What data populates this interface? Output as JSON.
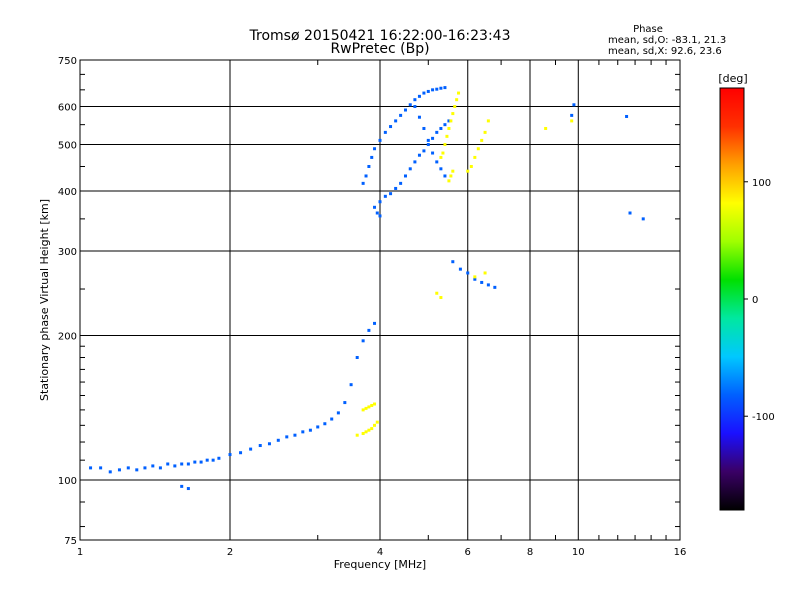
{
  "chart_data": {
    "type": "scatter",
    "title": "Tromsø 20150421 16:22:00-16:23:43",
    "subtitle": "RwPretec (Bp)",
    "xlabel": "Frequency [MHz]",
    "ylabel": "Stationary phase Virtual Height [km]",
    "x_scale": "log",
    "y_scale": "log",
    "xlim": [
      1,
      16
    ],
    "ylim": [
      75,
      750
    ],
    "x_ticks": [
      1,
      2,
      4,
      6,
      8,
      10,
      16
    ],
    "y_ticks": [
      75,
      100,
      200,
      300,
      400,
      500,
      600,
      750
    ],
    "grid": true,
    "phase_info": {
      "label": "Phase",
      "line_o": "mean, sd,O: -83.1, 21.3",
      "line_x": "mean, sd,X:  92.6, 23.6"
    },
    "colorbar": {
      "label": "[deg]",
      "range": [
        -180,
        180
      ],
      "ticks": [
        100,
        0,
        -100
      ],
      "colors": [
        "#000000",
        "#3a0066",
        "#1a10ff",
        "#0060ff",
        "#00c8ff",
        "#00e8a0",
        "#00e000",
        "#a0ff00",
        "#ffff00",
        "#ffa000",
        "#ff3000",
        "#ff0000"
      ]
    },
    "series": [
      {
        "name": "O",
        "colormap_phase_deg": -83.1,
        "x": [
          1.05,
          1.1,
          1.15,
          1.2,
          1.25,
          1.3,
          1.35,
          1.4,
          1.45,
          1.5,
          1.55,
          1.6,
          1.65,
          1.7,
          1.75,
          1.8,
          1.85,
          1.9,
          2.0,
          2.1,
          2.2,
          2.3,
          2.4,
          2.5,
          2.6,
          2.7,
          2.8,
          2.9,
          3.0,
          3.1,
          3.2,
          3.3,
          3.4,
          3.5,
          3.6,
          3.7,
          3.8,
          3.9,
          4.0,
          4.1,
          4.2,
          4.3,
          4.4,
          4.5,
          4.6,
          4.7,
          4.8,
          4.9,
          5.0,
          5.1,
          5.2,
          5.3,
          5.4,
          5.5,
          3.7,
          3.75,
          3.8,
          3.85,
          3.9,
          4.0,
          4.1,
          4.2,
          4.3,
          4.4,
          4.5,
          4.6,
          4.7,
          4.8,
          4.9,
          5.0,
          5.1,
          5.2,
          5.3,
          5.4,
          3.9,
          3.95,
          4.0,
          4.7,
          4.8,
          4.9,
          5.0,
          5.1,
          5.2,
          5.3,
          5.4,
          5.6,
          5.8,
          6.0,
          6.2,
          6.4,
          6.6,
          6.8,
          1.6,
          1.65,
          9.7,
          9.8,
          12.5,
          12.7,
          13.5
        ],
        "y": [
          106,
          106,
          104,
          105,
          106,
          105,
          106,
          107,
          106,
          108,
          107,
          108,
          108,
          109,
          109,
          110,
          110,
          111,
          113,
          114,
          116,
          118,
          119,
          121,
          123,
          124,
          126,
          127,
          129,
          131,
          134,
          138,
          145,
          158,
          180,
          195,
          205,
          212,
          380,
          390,
          395,
          405,
          415,
          430,
          445,
          460,
          475,
          485,
          500,
          515,
          530,
          540,
          550,
          560,
          415,
          430,
          450,
          470,
          490,
          510,
          530,
          545,
          560,
          575,
          590,
          605,
          620,
          630,
          640,
          645,
          650,
          652,
          655,
          657,
          370,
          360,
          355,
          600,
          570,
          540,
          510,
          480,
          460,
          445,
          430,
          285,
          275,
          270,
          262,
          258,
          255,
          252,
          97,
          96,
          575,
          605,
          572,
          360,
          350
        ]
      },
      {
        "name": "X",
        "colormap_phase_deg": 92.6,
        "x": [
          3.6,
          3.7,
          3.75,
          3.8,
          3.85,
          3.9,
          3.95,
          3.7,
          3.75,
          3.8,
          3.85,
          3.9,
          5.3,
          5.35,
          5.4,
          5.45,
          5.5,
          5.55,
          5.6,
          5.65,
          5.7,
          5.75,
          6.0,
          6.1,
          6.2,
          6.3,
          6.4,
          6.5,
          6.6,
          5.5,
          5.55,
          5.6,
          6.2,
          6.5,
          5.2,
          5.3,
          8.6,
          9.7
        ],
        "y": [
          124,
          125,
          126,
          127,
          128,
          130,
          132,
          140,
          141,
          142,
          143,
          144,
          470,
          480,
          500,
          520,
          540,
          560,
          580,
          600,
          620,
          640,
          440,
          450,
          470,
          490,
          510,
          530,
          560,
          420,
          430,
          440,
          265,
          270,
          245,
          240,
          540,
          560
        ]
      }
    ]
  }
}
